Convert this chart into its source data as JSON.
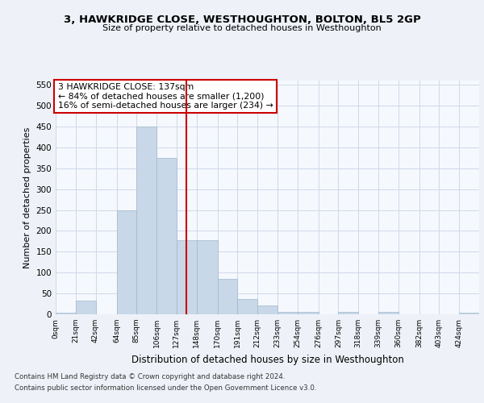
{
  "title": "3, HAWKRIDGE CLOSE, WESTHOUGHTON, BOLTON, BL5 2GP",
  "subtitle": "Size of property relative to detached houses in Westhoughton",
  "xlabel": "Distribution of detached houses by size in Westhoughton",
  "ylabel": "Number of detached properties",
  "footnote1": "Contains HM Land Registry data © Crown copyright and database right 2024.",
  "footnote2": "Contains public sector information licensed under the Open Government Licence v3.0.",
  "annotation_line1": "3 HAWKRIDGE CLOSE: 137sqm",
  "annotation_line2": "← 84% of detached houses are smaller (1,200)",
  "annotation_line3": "16% of semi-detached houses are larger (234) →",
  "bar_color": "#c8d8e8",
  "bar_edge_color": "#a0b8cc",
  "vline_color": "#cc0000",
  "vline_x": 137,
  "categories": [
    "0sqm",
    "21sqm",
    "42sqm",
    "64sqm",
    "85sqm",
    "106sqm",
    "127sqm",
    "148sqm",
    "170sqm",
    "191sqm",
    "212sqm",
    "233sqm",
    "254sqm",
    "276sqm",
    "297sqm",
    "318sqm",
    "339sqm",
    "360sqm",
    "382sqm",
    "403sqm",
    "424sqm"
  ],
  "bin_edges": [
    0,
    21,
    42,
    64,
    85,
    106,
    127,
    148,
    170,
    191,
    212,
    233,
    254,
    276,
    297,
    318,
    339,
    360,
    382,
    403,
    424,
    445
  ],
  "bar_heights": [
    4,
    32,
    0,
    250,
    449,
    374,
    178,
    178,
    85,
    37,
    22,
    6,
    5,
    0,
    5,
    0,
    5,
    0,
    0,
    0,
    4
  ],
  "ylim": [
    0,
    560
  ],
  "yticks": [
    0,
    50,
    100,
    150,
    200,
    250,
    300,
    350,
    400,
    450,
    500,
    550
  ],
  "bg_color": "#eef2f8",
  "plot_bg_color": "#f5f8fd",
  "grid_color": "#d0d8e8"
}
